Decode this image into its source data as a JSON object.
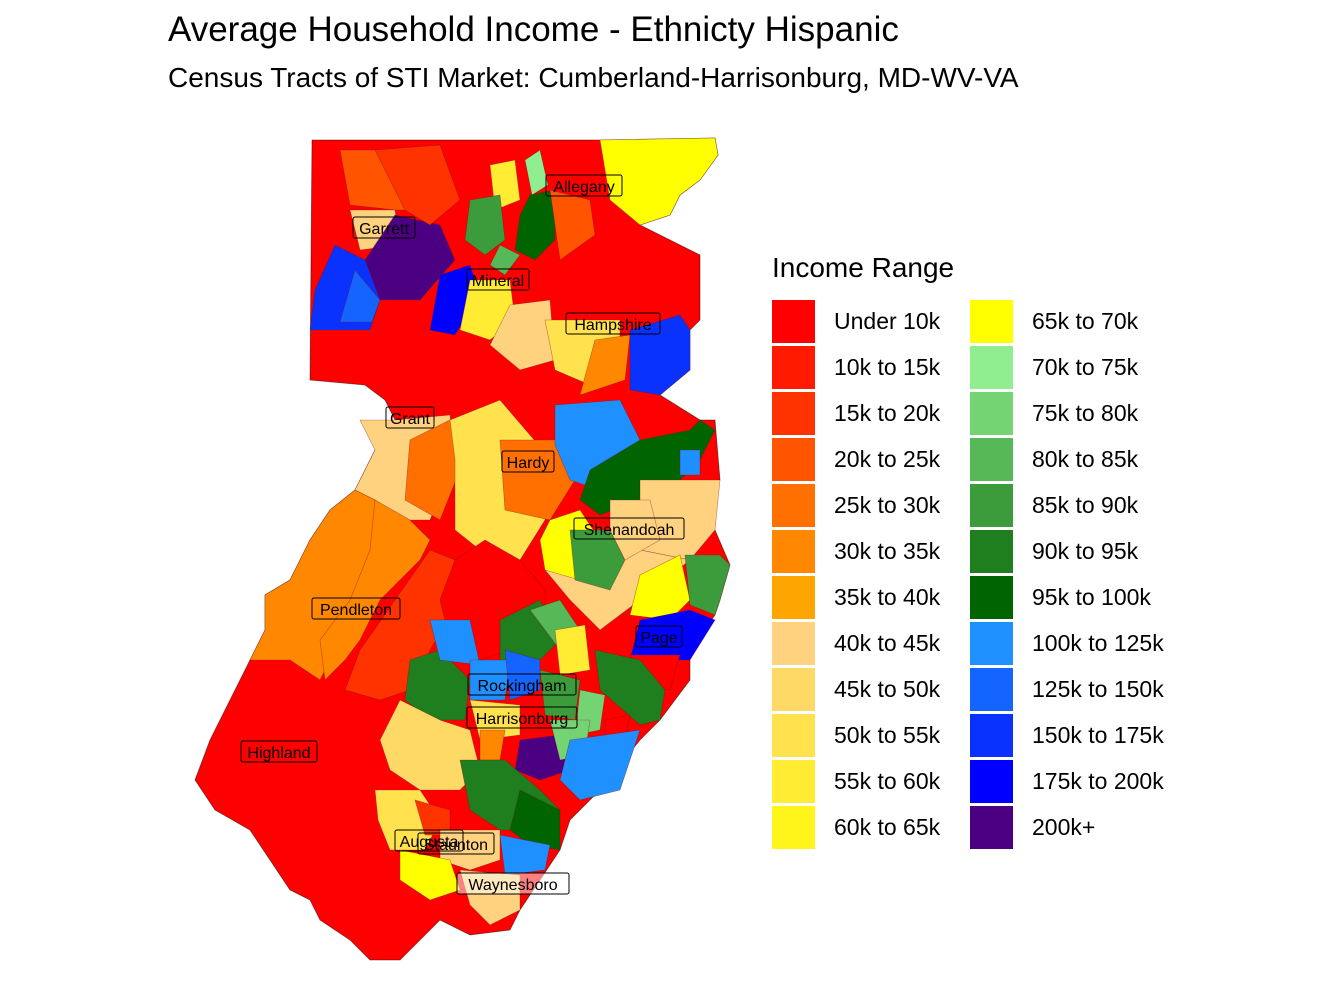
{
  "title": "Average Household Income - Ethnicty Hispanic",
  "subtitle": "Census Tracts of STI Market: Cumberland-Harrisonburg, MD-WV-VA",
  "legend": {
    "title": "Income Range",
    "items": [
      {
        "label": "Under 10k",
        "color": "#ff0000"
      },
      {
        "label": "10k to 15k",
        "color": "#ff1a00"
      },
      {
        "label": "15k to 20k",
        "color": "#ff3300"
      },
      {
        "label": "20k to 25k",
        "color": "#ff5500"
      },
      {
        "label": "25k to 30k",
        "color": "#ff7000"
      },
      {
        "label": "30k to 35k",
        "color": "#ff8800"
      },
      {
        "label": "35k to 40k",
        "color": "#ffa500"
      },
      {
        "label": "40k to 45k",
        "color": "#ffd27f"
      },
      {
        "label": "45k to 50k",
        "color": "#ffd966"
      },
      {
        "label": "50k to 55k",
        "color": "#ffe24d"
      },
      {
        "label": "55k to 60k",
        "color": "#ffec33"
      },
      {
        "label": "60k to 65k",
        "color": "#fff51a"
      },
      {
        "label": "65k to 70k",
        "color": "#ffff00"
      },
      {
        "label": "70k to 75k",
        "color": "#90ee90"
      },
      {
        "label": "75k to 80k",
        "color": "#74d474"
      },
      {
        "label": "80k to 85k",
        "color": "#56b856"
      },
      {
        "label": "85k to 90k",
        "color": "#3c9c3c"
      },
      {
        "label": "90k to 95k",
        "color": "#1f7f1f"
      },
      {
        "label": "95k to 100k",
        "color": "#006400"
      },
      {
        "label": "100k to 125k",
        "color": "#1e90ff"
      },
      {
        "label": "125k to 150k",
        "color": "#1464ff"
      },
      {
        "label": "150k to 175k",
        "color": "#0a32ff"
      },
      {
        "label": "175k to 200k",
        "color": "#0000ff"
      },
      {
        "label": "200k+",
        "color": "#4b0082"
      }
    ]
  },
  "map": {
    "labels": [
      "Allegany",
      "Garrett",
      "Mineral",
      "Hampshire",
      "Grant",
      "Hardy",
      "Shenandoah",
      "Pendleton",
      "Page",
      "Rockingham",
      "Harrisonburg",
      "Highland",
      "Augusta",
      "Staunton",
      "Waynesboro"
    ]
  }
}
